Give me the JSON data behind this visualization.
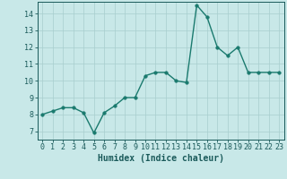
{
  "x": [
    0,
    1,
    2,
    3,
    4,
    5,
    6,
    7,
    8,
    9,
    10,
    11,
    12,
    13,
    14,
    15,
    16,
    17,
    18,
    19,
    20,
    21,
    22,
    23
  ],
  "y": [
    8.0,
    8.2,
    8.4,
    8.4,
    8.1,
    6.9,
    8.1,
    8.5,
    9.0,
    9.0,
    10.3,
    10.5,
    10.5,
    10.0,
    9.9,
    14.5,
    13.8,
    12.0,
    11.5,
    12.0,
    10.5,
    10.5,
    10.5,
    10.5
  ],
  "line_color": "#1a7a6e",
  "marker_color": "#1a7a6e",
  "bg_color": "#c8e8e8",
  "grid_color": "#a8cece",
  "axis_color": "#1a5a5a",
  "xlabel": "Humidex (Indice chaleur)",
  "ylim": [
    6.5,
    14.7
  ],
  "xlim": [
    -0.5,
    23.5
  ],
  "yticks": [
    7,
    8,
    9,
    10,
    11,
    12,
    13,
    14
  ],
  "xticks": [
    0,
    1,
    2,
    3,
    4,
    5,
    6,
    7,
    8,
    9,
    10,
    11,
    12,
    13,
    14,
    15,
    16,
    17,
    18,
    19,
    20,
    21,
    22,
    23
  ],
  "font_color": "#1a5a5a",
  "xlabel_fontsize": 7,
  "tick_fontsize": 6,
  "line_width": 1.0,
  "marker_size": 2.5
}
